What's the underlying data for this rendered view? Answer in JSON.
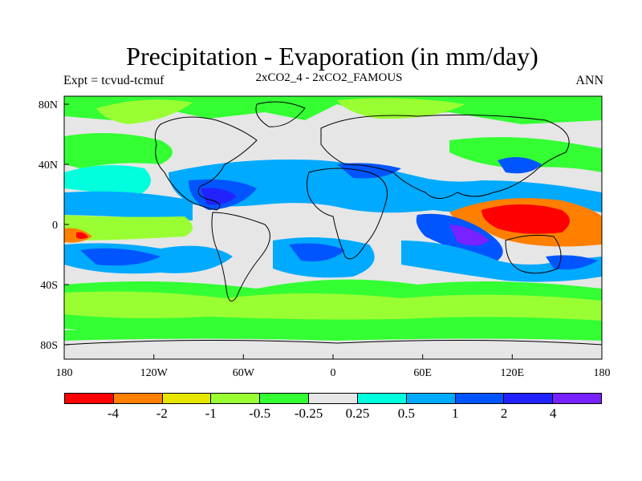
{
  "title": "Precipitation - Evaporation (in mm/day)",
  "left_label": "Expt = tcvud-tcmuf",
  "center_label": "2xCO2_4 - 2xCO2_FAMOUS",
  "right_label": "ANN",
  "lon_ticks": [
    "180",
    "120W",
    "60W",
    "0",
    "60E",
    "120E",
    "180"
  ],
  "lat_ticks": [
    "80N",
    "40N",
    "0",
    "40S",
    "80S"
  ],
  "colorbar": {
    "colors": [
      "#ff0000",
      "#ff8000",
      "#e6e600",
      "#99ff33",
      "#33ff33",
      "#e6e6e6",
      "#00ffdd",
      "#00aaff",
      "#0055ff",
      "#2222ff",
      "#7722ff"
    ],
    "labels": [
      "-4",
      "-2",
      "-1",
      "-0.5",
      "-0.25",
      "0.25",
      "0.5",
      "1",
      "2",
      "4"
    ]
  }
}
